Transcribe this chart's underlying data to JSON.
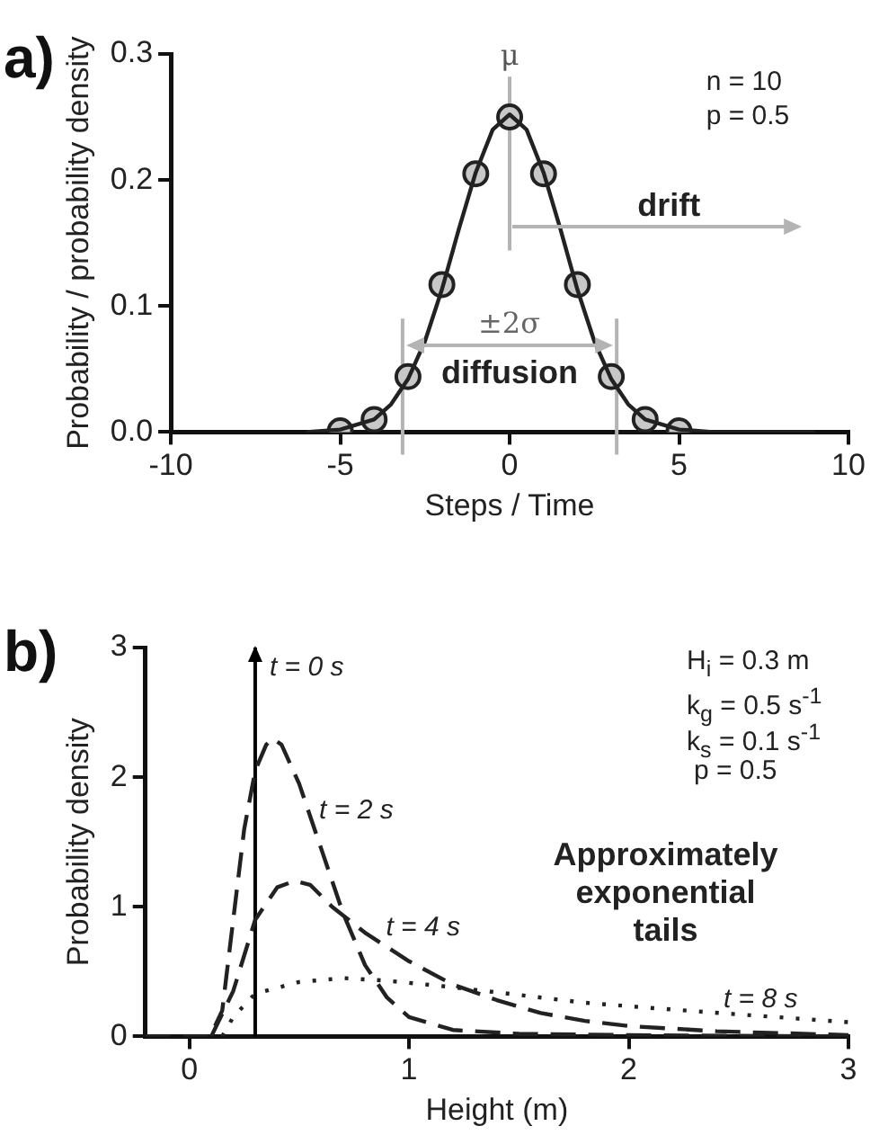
{
  "chart_data": [
    {
      "type": "line",
      "title": "a)",
      "xlabel": "Steps / Time",
      "ylabel": "Probability / probability density",
      "xlim": [
        -10,
        10
      ],
      "ylim": [
        0,
        0.3
      ],
      "xticks": [
        -10,
        -5,
        0,
        5,
        10
      ],
      "yticks": [
        {
          "value": 0,
          "label": "0.0"
        },
        {
          "value": 0.1,
          "label": "0.1"
        },
        {
          "value": 0.2,
          "label": "0.2"
        },
        {
          "value": 0.3,
          "label": "0.3"
        }
      ],
      "grid": false,
      "legend": false,
      "series": [
        {
          "type": "line",
          "color": "#222222",
          "line_style": "solid",
          "marker": "none",
          "x": [
            -6,
            -5,
            -4,
            -3.5,
            -3,
            -2.5,
            -2,
            -1.5,
            -1,
            -0.5,
            0,
            0.5,
            1,
            1.5,
            2,
            2.5,
            3,
            3.5,
            4,
            5,
            6,
            9
          ],
          "values": [
            0,
            0.002,
            0.01,
            0.022,
            0.042,
            0.072,
            0.113,
            0.161,
            0.206,
            0.24,
            0.252,
            0.24,
            0.206,
            0.161,
            0.113,
            0.072,
            0.042,
            0.022,
            0.01,
            0.002,
            0,
            0
          ]
        },
        {
          "type": "scatter",
          "color": "#c8c8c8",
          "marker": "circle",
          "x": [
            -5,
            -4,
            -3,
            -2,
            -1,
            0,
            1,
            2,
            3,
            4,
            5
          ],
          "values": [
            0.001,
            0.01,
            0.044,
            0.117,
            0.205,
            0.25,
            0.205,
            0.117,
            0.044,
            0.01,
            0.001
          ]
        }
      ],
      "ref_lines": [
        {
          "axis": "x",
          "value": 0,
          "label": "μ",
          "color": "#b4b4b4"
        },
        {
          "axis": "x",
          "value": -3.16,
          "color": "#b4b4b4"
        },
        {
          "axis": "x",
          "value": 3.16,
          "color": "#b4b4b4"
        }
      ],
      "annotations": [
        "±2σ",
        "drift",
        "diffusion",
        "n = 10",
        "p = 0.5"
      ]
    },
    {
      "type": "line",
      "title": "b)",
      "xlabel": "Height (m)",
      "ylabel": "Probability density",
      "xlim": [
        -0.2,
        3
      ],
      "ylim": [
        0,
        3
      ],
      "xticks": [
        0,
        1,
        2,
        3
      ],
      "yticks": [
        0,
        1,
        2,
        3
      ],
      "grid": false,
      "legend": false,
      "series": [
        {
          "name": "t = 2 s",
          "type": "line",
          "color": "#222222",
          "line_style": "dashed",
          "marker": "none",
          "x": [
            -0.2,
            0.08,
            0.1,
            0.15,
            0.2,
            0.25,
            0.3,
            0.35,
            0.38,
            0.42,
            0.5,
            0.6,
            0.7,
            0.8,
            0.9,
            1.0,
            1.2,
            1.5,
            2,
            3
          ],
          "values": [
            0,
            0,
            0.02,
            0.2,
            0.9,
            1.6,
            2.05,
            2.25,
            2.3,
            2.25,
            1.95,
            1.45,
            0.95,
            0.55,
            0.3,
            0.15,
            0.05,
            0.02,
            0.01,
            0
          ]
        },
        {
          "name": "t = 4 s",
          "type": "line",
          "color": "#222222",
          "line_style": "dashed",
          "marker": "none",
          "x": [
            0.1,
            0.2,
            0.3,
            0.4,
            0.48,
            0.55,
            0.65,
            0.8,
            1.0,
            1.2,
            1.4,
            1.6,
            1.8,
            2.0,
            2.4,
            3.0
          ],
          "values": [
            0,
            0.35,
            0.9,
            1.15,
            1.2,
            1.17,
            1.0,
            0.8,
            0.58,
            0.4,
            0.28,
            0.18,
            0.12,
            0.08,
            0.04,
            0.01
          ]
        },
        {
          "name": "t = 8 s",
          "type": "line",
          "color": "#222222",
          "line_style": "dotted",
          "marker": "none",
          "x": [
            0.15,
            0.2,
            0.3,
            0.5,
            0.7,
            0.9,
            1.2,
            1.5,
            1.8,
            2.1,
            2.5,
            3.0
          ],
          "values": [
            0,
            0.15,
            0.33,
            0.42,
            0.45,
            0.43,
            0.38,
            0.32,
            0.26,
            0.22,
            0.17,
            0.11
          ]
        }
      ],
      "ref_lines": [
        {
          "axis": "x",
          "value": 0.3,
          "label": "t = 0 s",
          "color": "#000000"
        }
      ],
      "annotations": [
        "H$_{i}$ = 0.3 m",
        "k$_{g}$ = 0.5 s$^{-1}$",
        "k$_{s}$ = 0.1 s$^{-1}$",
        "p = 0.5",
        "Approximately exponential tails"
      ]
    }
  ]
}
